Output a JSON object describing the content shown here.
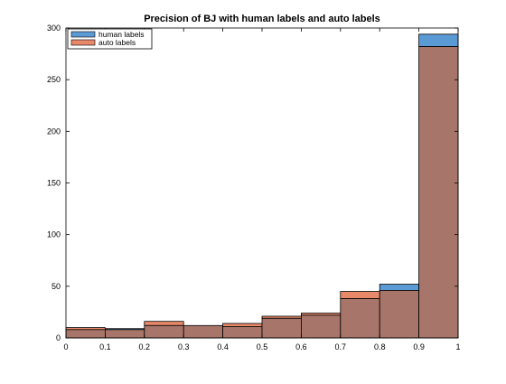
{
  "chart_data": {
    "type": "bar",
    "title": "Precision of BJ with human labels and auto labels",
    "xlabel": "",
    "ylabel": "",
    "xlim": [
      0,
      1
    ],
    "ylim": [
      0,
      300
    ],
    "x_ticks": [
      "0",
      "0.1",
      "0.2",
      "0.3",
      "0.4",
      "0.5",
      "0.6",
      "0.7",
      "0.8",
      "0.9",
      "1"
    ],
    "y_ticks": [
      "0",
      "50",
      "100",
      "150",
      "200",
      "250",
      "300"
    ],
    "bin_edges": [
      0,
      0.1,
      0.2,
      0.3,
      0.4,
      0.5,
      0.6,
      0.7,
      0.8,
      0.9,
      1.0
    ],
    "grid": false,
    "legend_position": "top-left",
    "series": [
      {
        "name": "human labels",
        "color": "#5b9bd5",
        "values": [
          8,
          9,
          12,
          12,
          11,
          19,
          22,
          38,
          52,
          294
        ]
      },
      {
        "name": "auto labels",
        "color": "#e8896a",
        "values": [
          10,
          8,
          16,
          12,
          14,
          21,
          24,
          45,
          46,
          282
        ]
      }
    ],
    "overlap_color": "#a8756a"
  }
}
